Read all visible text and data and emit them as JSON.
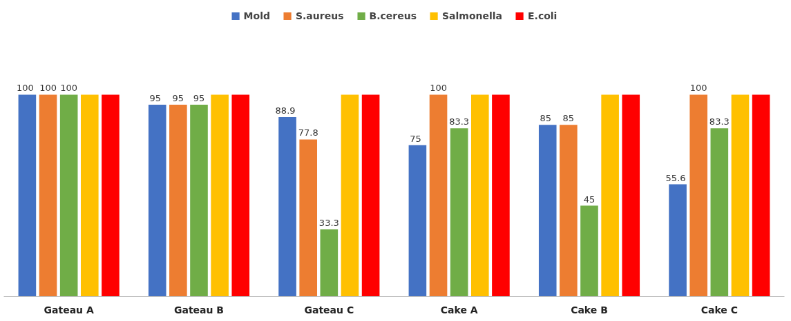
{
  "chart_data": {
    "type": "bar",
    "categories": [
      "Gateau A",
      "Gateau B",
      "Gateau C",
      "Cake A",
      "Cake B",
      "Cake C"
    ],
    "series": [
      {
        "name": "Mold",
        "color": "#4472c4",
        "values": [
          100,
          95,
          88.9,
          75,
          85,
          55.6
        ],
        "value_labels": [
          "100",
          "95",
          "88.9",
          "75",
          "85",
          "55.6"
        ]
      },
      {
        "name": "S.aureus",
        "color": "#ed7d31",
        "values": [
          100,
          95,
          77.8,
          100,
          85,
          100
        ],
        "value_labels": [
          "100",
          "95",
          "77.8",
          "100",
          "85",
          "100"
        ]
      },
      {
        "name": "B.cereus",
        "color": "#70ad47",
        "values": [
          100,
          95,
          33.3,
          83.3,
          45,
          83.3
        ],
        "value_labels": [
          "100",
          "95",
          "33.3",
          "83.3",
          "45",
          "83.3"
        ]
      },
      {
        "name": "Salmonella",
        "color": "#ffc000",
        "values": [
          100,
          100,
          100,
          100,
          100,
          100
        ],
        "value_labels": [
          null,
          null,
          null,
          null,
          null,
          null
        ]
      },
      {
        "name": "E.coli",
        "color": "#ff0000",
        "values": [
          100,
          100,
          100,
          100,
          100,
          100
        ],
        "value_labels": [
          null,
          null,
          null,
          null,
          null,
          null
        ]
      }
    ],
    "legend": "top",
    "grid": false
  }
}
